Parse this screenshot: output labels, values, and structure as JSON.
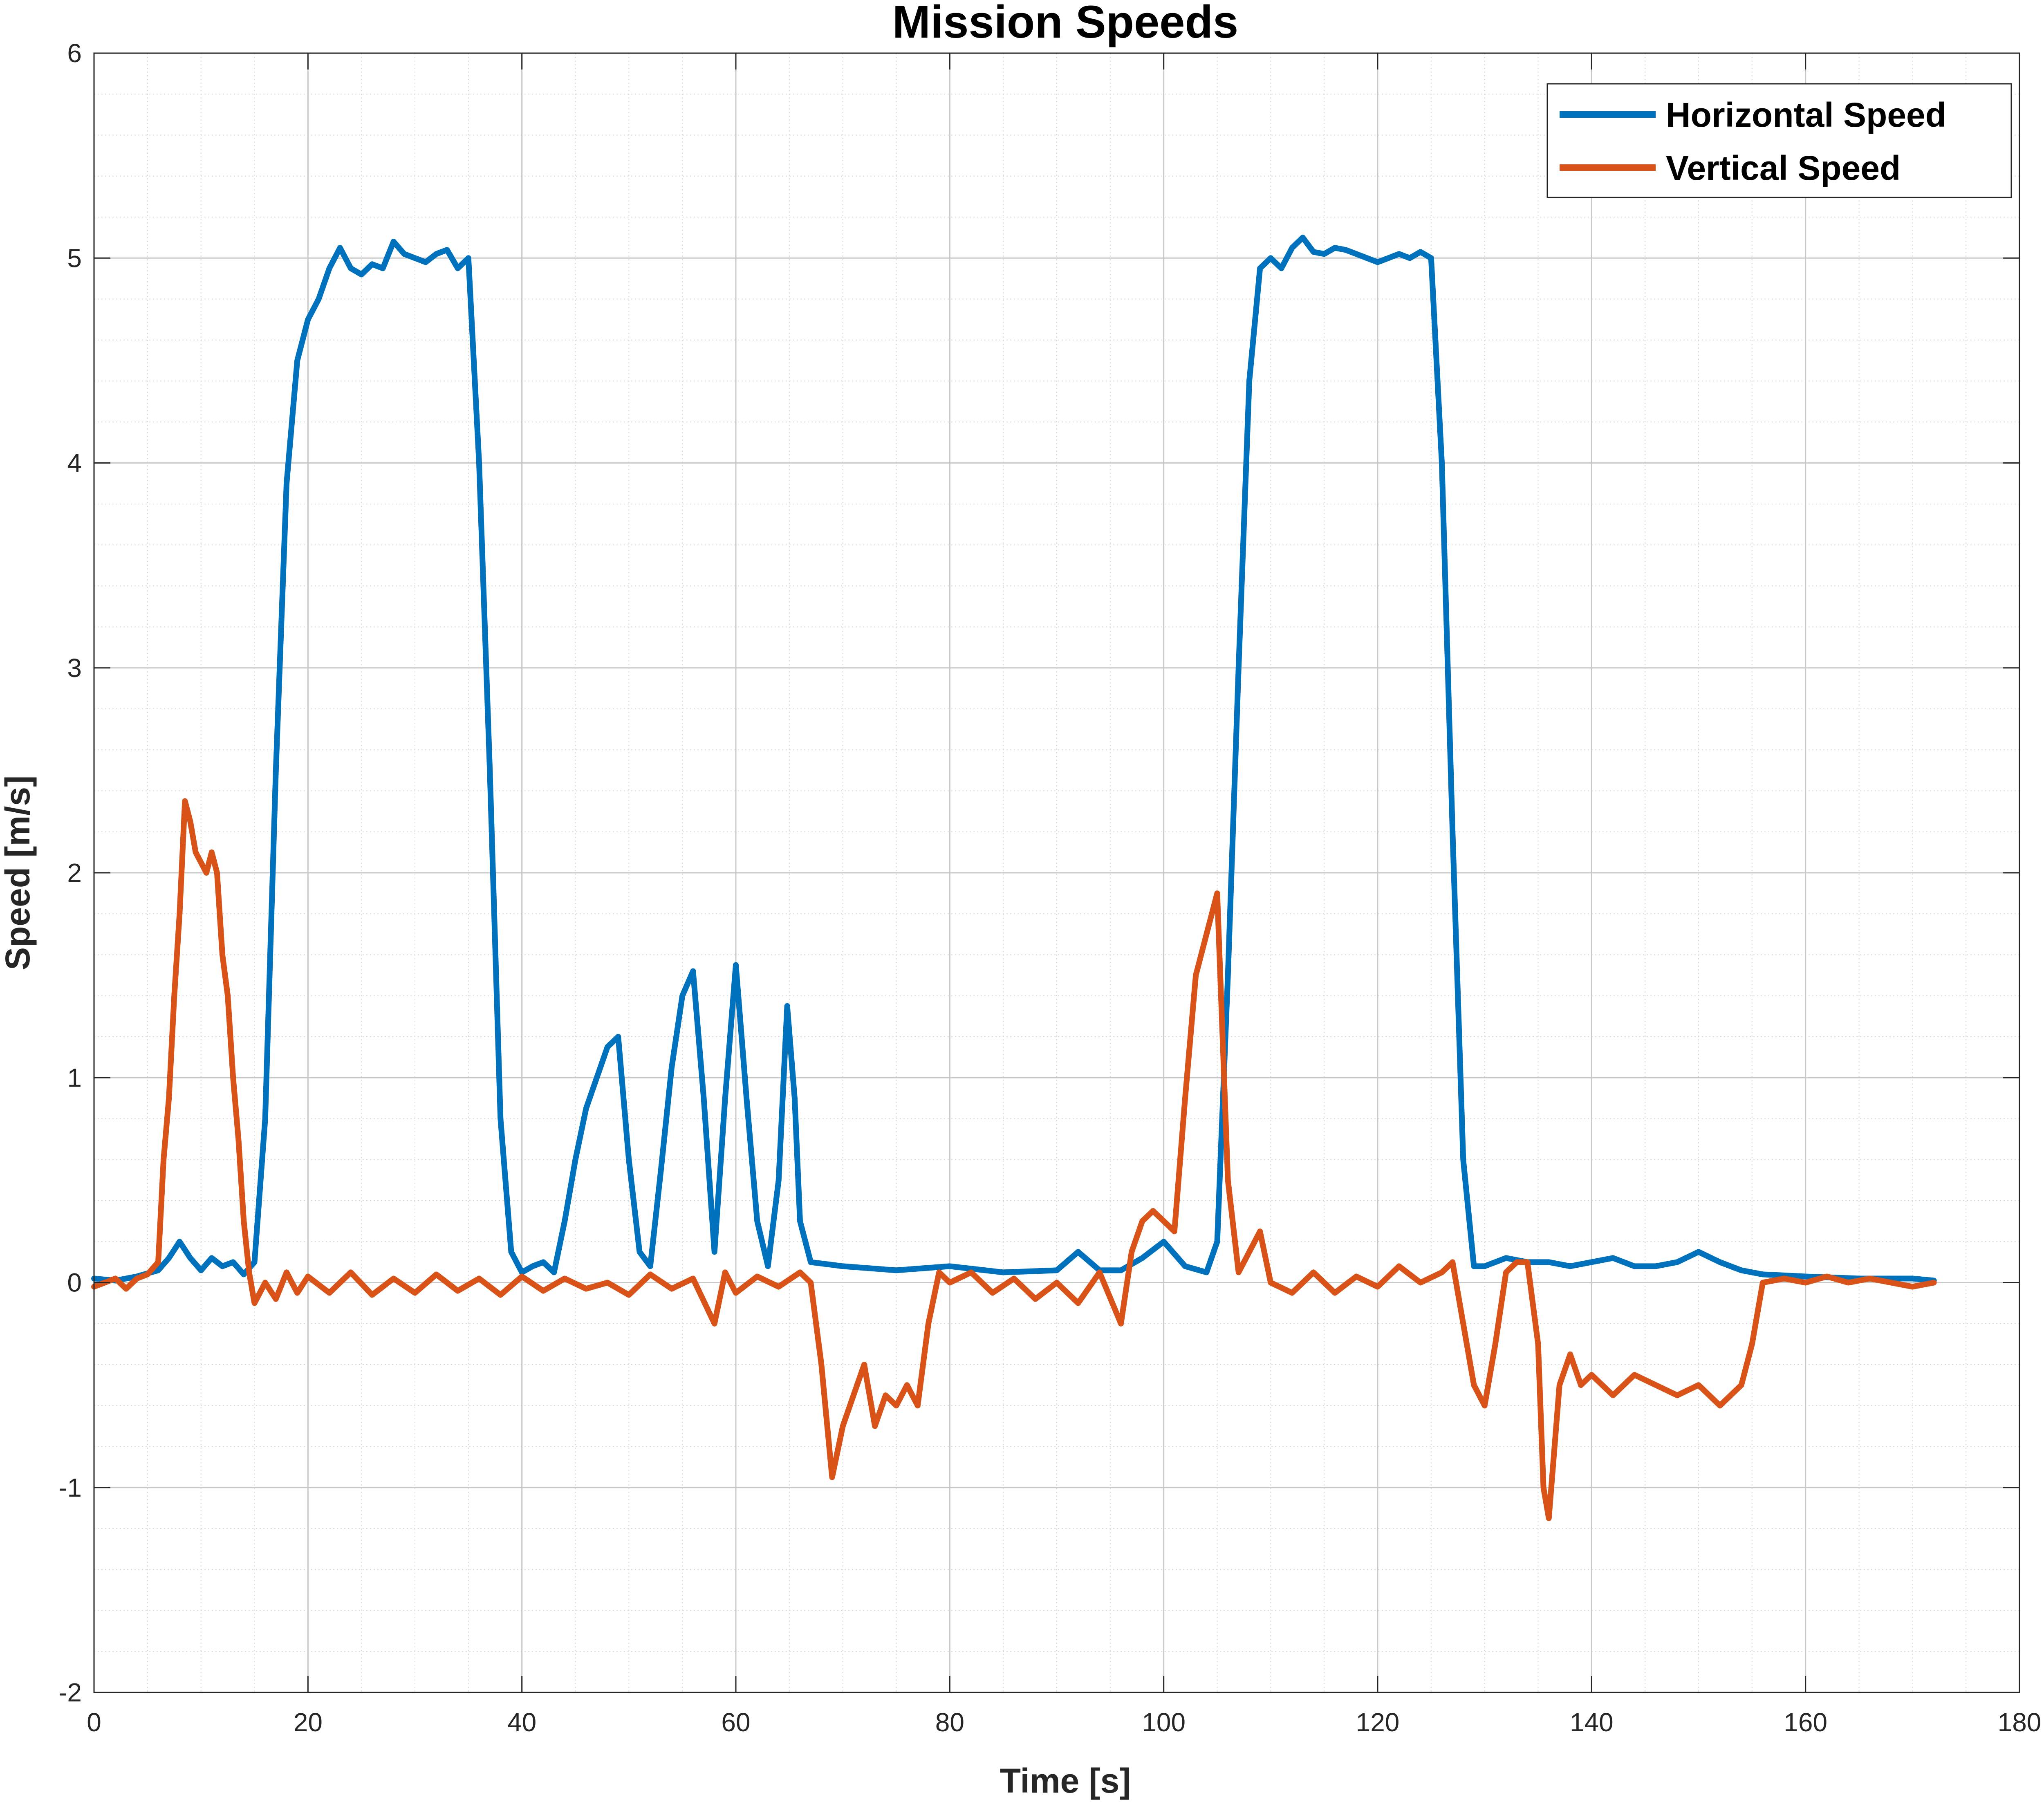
{
  "chart_data": {
    "type": "line",
    "title": "Mission Speeds",
    "xlabel": "Time [s]",
    "ylabel": "Speed [m/s]",
    "xlim": [
      0,
      180
    ],
    "ylim": [
      -2,
      6
    ],
    "xticks": [
      0,
      20,
      40,
      60,
      80,
      100,
      120,
      140,
      160,
      180
    ],
    "yticks": [
      -2,
      -1,
      0,
      1,
      2,
      3,
      4,
      5,
      6
    ],
    "xtick_labels": [
      "0",
      "20",
      "40",
      "60",
      "80",
      "100",
      "120",
      "140",
      "160",
      "180"
    ],
    "ytick_labels": [
      "-2",
      "-1",
      "0",
      "1",
      "2",
      "3",
      "4",
      "5",
      "6"
    ],
    "grid": true,
    "minor_grid": true,
    "legend_position": "top-right",
    "series": [
      {
        "name": "Horizontal Speed",
        "color": "#0072BD",
        "points": [
          [
            0,
            0.02
          ],
          [
            2,
            0.01
          ],
          [
            4,
            0.03
          ],
          [
            6,
            0.06
          ],
          [
            7,
            0.12
          ],
          [
            8,
            0.2
          ],
          [
            9,
            0.12
          ],
          [
            10,
            0.06
          ],
          [
            11,
            0.12
          ],
          [
            12,
            0.08
          ],
          [
            13,
            0.1
          ],
          [
            14,
            0.04
          ],
          [
            15,
            0.1
          ],
          [
            16,
            0.8
          ],
          [
            17,
            2.5
          ],
          [
            18,
            3.9
          ],
          [
            19,
            4.5
          ],
          [
            20,
            4.7
          ],
          [
            21,
            4.8
          ],
          [
            22,
            4.95
          ],
          [
            23,
            5.05
          ],
          [
            24,
            4.95
          ],
          [
            25,
            4.92
          ],
          [
            26,
            4.97
          ],
          [
            27,
            4.95
          ],
          [
            28,
            5.08
          ],
          [
            29,
            5.02
          ],
          [
            30,
            5.0
          ],
          [
            31,
            4.98
          ],
          [
            32,
            5.02
          ],
          [
            33,
            5.04
          ],
          [
            34,
            4.95
          ],
          [
            35,
            5.0
          ],
          [
            36,
            4.0
          ],
          [
            37,
            2.5
          ],
          [
            38,
            0.8
          ],
          [
            39,
            0.15
          ],
          [
            40,
            0.05
          ],
          [
            41,
            0.08
          ],
          [
            42,
            0.1
          ],
          [
            43,
            0.05
          ],
          [
            44,
            0.3
          ],
          [
            45,
            0.6
          ],
          [
            46,
            0.85
          ],
          [
            47,
            1.0
          ],
          [
            48,
            1.15
          ],
          [
            49,
            1.2
          ],
          [
            50,
            0.6
          ],
          [
            51,
            0.15
          ],
          [
            52,
            0.08
          ],
          [
            53,
            0.55
          ],
          [
            54,
            1.05
          ],
          [
            55,
            1.4
          ],
          [
            56,
            1.52
          ],
          [
            57,
            0.9
          ],
          [
            58,
            0.15
          ],
          [
            59,
            0.9
          ],
          [
            60,
            1.55
          ],
          [
            61,
            0.9
          ],
          [
            62,
            0.3
          ],
          [
            63,
            0.08
          ],
          [
            64,
            0.5
          ],
          [
            64.8,
            1.35
          ],
          [
            65.5,
            0.9
          ],
          [
            66,
            0.3
          ],
          [
            67,
            0.1
          ],
          [
            70,
            0.08
          ],
          [
            75,
            0.06
          ],
          [
            80,
            0.08
          ],
          [
            85,
            0.05
          ],
          [
            90,
            0.06
          ],
          [
            92,
            0.15
          ],
          [
            94,
            0.06
          ],
          [
            96,
            0.06
          ],
          [
            98,
            0.12
          ],
          [
            100,
            0.2
          ],
          [
            102,
            0.08
          ],
          [
            104,
            0.05
          ],
          [
            105,
            0.2
          ],
          [
            106,
            1.5
          ],
          [
            107,
            3.0
          ],
          [
            108,
            4.4
          ],
          [
            109,
            4.95
          ],
          [
            110,
            5.0
          ],
          [
            111,
            4.95
          ],
          [
            112,
            5.05
          ],
          [
            113,
            5.1
          ],
          [
            114,
            5.03
          ],
          [
            115,
            5.02
          ],
          [
            116,
            5.05
          ],
          [
            117,
            5.04
          ],
          [
            118,
            5.02
          ],
          [
            119,
            5.0
          ],
          [
            120,
            4.98
          ],
          [
            121,
            5.0
          ],
          [
            122,
            5.02
          ],
          [
            123,
            5.0
          ],
          [
            124,
            5.03
          ],
          [
            125,
            5.0
          ],
          [
            126,
            4.0
          ],
          [
            127,
            2.2
          ],
          [
            128,
            0.6
          ],
          [
            129,
            0.08
          ],
          [
            130,
            0.08
          ],
          [
            132,
            0.12
          ],
          [
            134,
            0.1
          ],
          [
            136,
            0.1
          ],
          [
            138,
            0.08
          ],
          [
            140,
            0.1
          ],
          [
            142,
            0.12
          ],
          [
            144,
            0.08
          ],
          [
            146,
            0.08
          ],
          [
            148,
            0.1
          ],
          [
            150,
            0.15
          ],
          [
            152,
            0.1
          ],
          [
            154,
            0.06
          ],
          [
            156,
            0.04
          ],
          [
            160,
            0.03
          ],
          [
            165,
            0.02
          ],
          [
            170,
            0.02
          ],
          [
            172,
            0.01
          ]
        ]
      },
      {
        "name": "Vertical Speed",
        "color": "#D95319",
        "points": [
          [
            0,
            -0.02
          ],
          [
            1,
            0.0
          ],
          [
            2,
            0.02
          ],
          [
            3,
            -0.03
          ],
          [
            4,
            0.02
          ],
          [
            5,
            0.04
          ],
          [
            6,
            0.1
          ],
          [
            6.5,
            0.6
          ],
          [
            7,
            0.9
          ],
          [
            7.5,
            1.4
          ],
          [
            8,
            1.8
          ],
          [
            8.5,
            2.35
          ],
          [
            9,
            2.25
          ],
          [
            9.5,
            2.1
          ],
          [
            10,
            2.05
          ],
          [
            10.5,
            2.0
          ],
          [
            11,
            2.1
          ],
          [
            11.5,
            2.0
          ],
          [
            12,
            1.6
          ],
          [
            12.5,
            1.4
          ],
          [
            13,
            1.0
          ],
          [
            13.5,
            0.7
          ],
          [
            14,
            0.3
          ],
          [
            14.5,
            0.05
          ],
          [
            15,
            -0.1
          ],
          [
            16,
            0.0
          ],
          [
            17,
            -0.08
          ],
          [
            18,
            0.05
          ],
          [
            19,
            -0.05
          ],
          [
            20,
            0.03
          ],
          [
            22,
            -0.05
          ],
          [
            24,
            0.05
          ],
          [
            26,
            -0.06
          ],
          [
            28,
            0.02
          ],
          [
            30,
            -0.05
          ],
          [
            32,
            0.04
          ],
          [
            34,
            -0.04
          ],
          [
            36,
            0.02
          ],
          [
            38,
            -0.06
          ],
          [
            40,
            0.03
          ],
          [
            42,
            -0.04
          ],
          [
            44,
            0.02
          ],
          [
            46,
            -0.03
          ],
          [
            48,
            0.0
          ],
          [
            50,
            -0.06
          ],
          [
            52,
            0.04
          ],
          [
            54,
            -0.03
          ],
          [
            56,
            0.02
          ],
          [
            58,
            -0.2
          ],
          [
            59,
            0.05
          ],
          [
            60,
            -0.05
          ],
          [
            62,
            0.03
          ],
          [
            64,
            -0.02
          ],
          [
            66,
            0.05
          ],
          [
            67,
            0.0
          ],
          [
            68,
            -0.4
          ],
          [
            69,
            -0.95
          ],
          [
            70,
            -0.7
          ],
          [
            71,
            -0.55
          ],
          [
            72,
            -0.4
          ],
          [
            73,
            -0.7
          ],
          [
            74,
            -0.55
          ],
          [
            75,
            -0.6
          ],
          [
            76,
            -0.5
          ],
          [
            77,
            -0.6
          ],
          [
            78,
            -0.2
          ],
          [
            79,
            0.05
          ],
          [
            80,
            0.0
          ],
          [
            82,
            0.05
          ],
          [
            84,
            -0.05
          ],
          [
            86,
            0.02
          ],
          [
            88,
            -0.08
          ],
          [
            90,
            0.0
          ],
          [
            92,
            -0.1
          ],
          [
            94,
            0.05
          ],
          [
            96,
            -0.2
          ],
          [
            97,
            0.15
          ],
          [
            98,
            0.3
          ],
          [
            99,
            0.35
          ],
          [
            100,
            0.3
          ],
          [
            101,
            0.25
          ],
          [
            102,
            0.9
          ],
          [
            103,
            1.5
          ],
          [
            104,
            1.7
          ],
          [
            105,
            1.9
          ],
          [
            106,
            0.5
          ],
          [
            107,
            0.05
          ],
          [
            108,
            0.15
          ],
          [
            109,
            0.25
          ],
          [
            110,
            0.0
          ],
          [
            112,
            -0.05
          ],
          [
            114,
            0.05
          ],
          [
            116,
            -0.05
          ],
          [
            118,
            0.03
          ],
          [
            120,
            -0.02
          ],
          [
            122,
            0.08
          ],
          [
            124,
            0.0
          ],
          [
            126,
            0.05
          ],
          [
            127,
            0.1
          ],
          [
            128,
            -0.2
          ],
          [
            129,
            -0.5
          ],
          [
            130,
            -0.6
          ],
          [
            131,
            -0.3
          ],
          [
            132,
            0.05
          ],
          [
            133,
            0.1
          ],
          [
            134,
            0.1
          ],
          [
            135,
            -0.3
          ],
          [
            135.5,
            -1.0
          ],
          [
            136,
            -1.15
          ],
          [
            137,
            -0.5
          ],
          [
            138,
            -0.35
          ],
          [
            139,
            -0.5
          ],
          [
            140,
            -0.45
          ],
          [
            142,
            -0.55
          ],
          [
            144,
            -0.45
          ],
          [
            146,
            -0.5
          ],
          [
            148,
            -0.55
          ],
          [
            150,
            -0.5
          ],
          [
            152,
            -0.6
          ],
          [
            154,
            -0.5
          ],
          [
            155,
            -0.3
          ],
          [
            156,
            0.0
          ],
          [
            158,
            0.02
          ],
          [
            160,
            0.0
          ],
          [
            162,
            0.03
          ],
          [
            164,
            0.0
          ],
          [
            166,
            0.02
          ],
          [
            168,
            0.0
          ],
          [
            170,
            -0.02
          ],
          [
            172,
            0.0
          ]
        ]
      }
    ]
  }
}
